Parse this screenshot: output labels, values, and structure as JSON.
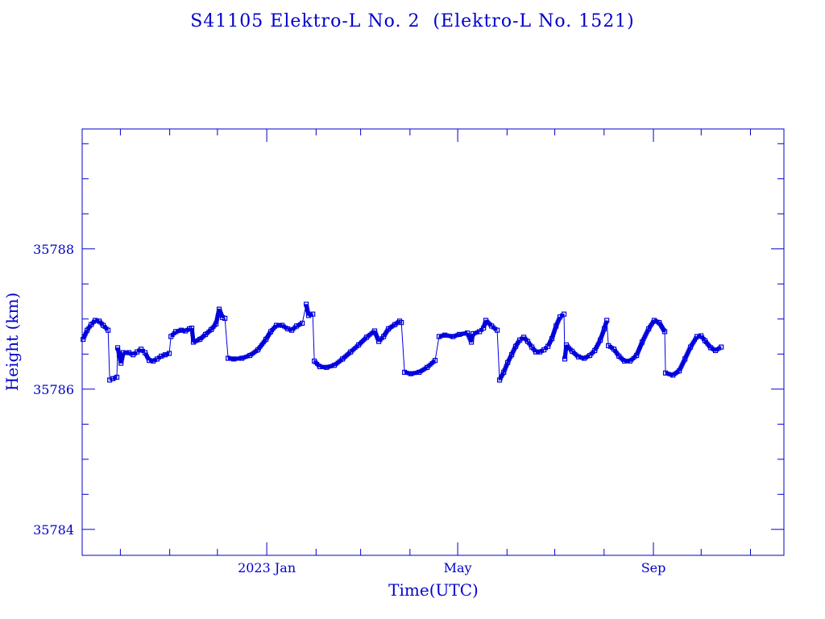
{
  "chart_data": {
    "type": "line",
    "title": "S41105 Elektro-L No. 2  (Elektro-L No. 1521)",
    "xlabel": "Time(UTC)",
    "ylabel": "Height (km)",
    "x_units": "days since 2023-01-01",
    "xlim": [
      -116,
      325
    ],
    "ylim": [
      35783.63,
      35789.71
    ],
    "x_major_ticks": [
      {
        "value": 0,
        "label": "2023 Jan"
      },
      {
        "value": 120,
        "label": "May"
      },
      {
        "value": 243,
        "label": "Sep"
      }
    ],
    "x_minor_ticks": [
      -92,
      -61,
      -31,
      31,
      59,
      90,
      151,
      181,
      212,
      273,
      304
    ],
    "y_major_ticks": [
      {
        "value": 35784,
        "label": "35784"
      },
      {
        "value": 35786,
        "label": "35786"
      },
      {
        "value": 35788,
        "label": "35788"
      }
    ],
    "y_minor_step": 0.5,
    "grid": false,
    "color": "#0000dd",
    "series": [
      {
        "name": "Height",
        "marker": "square",
        "points": [
          [
            -115.4,
            35786.71
          ],
          [
            -112.9,
            35786.84
          ],
          [
            -110.4,
            35786.92
          ],
          [
            -107.8,
            35786.98
          ],
          [
            -105.3,
            35786.97
          ],
          [
            -102.8,
            35786.91
          ],
          [
            -99.7,
            35786.84
          ],
          [
            -98.7,
            35786.13
          ],
          [
            -96.7,
            35786.15
          ],
          [
            -94.2,
            35786.17
          ],
          [
            -93.7,
            35786.59
          ],
          [
            -92.7,
            35786.49
          ],
          [
            -91.6,
            35786.37
          ],
          [
            -90.1,
            35786.52
          ],
          [
            -86.6,
            35786.52
          ],
          [
            -84.0,
            35786.49
          ],
          [
            -81.5,
            35786.53
          ],
          [
            -79.0,
            35786.57
          ],
          [
            -76.5,
            35786.52
          ],
          [
            -73.9,
            35786.41
          ],
          [
            -71.4,
            35786.4
          ],
          [
            -68.9,
            35786.43
          ],
          [
            -66.3,
            35786.47
          ],
          [
            -63.8,
            35786.49
          ],
          [
            -61.3,
            35786.51
          ],
          [
            -60.2,
            35786.75
          ],
          [
            -57.2,
            35786.82
          ],
          [
            -53.7,
            35786.84
          ],
          [
            -51.1,
            35786.83
          ],
          [
            -48.6,
            35786.86
          ],
          [
            -47.1,
            35786.87
          ],
          [
            -46.1,
            35786.67
          ],
          [
            -42.0,
            35786.71
          ],
          [
            -38.5,
            35786.78
          ],
          [
            -34.9,
            35786.85
          ],
          [
            -31.9,
            35786.93
          ],
          [
            -29.9,
            35787.14
          ],
          [
            -27.8,
            35787.02
          ],
          [
            -26.3,
            35787.01
          ],
          [
            -24.3,
            35786.44
          ],
          [
            -20.8,
            35786.43
          ],
          [
            -15.7,
            35786.44
          ],
          [
            -10.6,
            35786.48
          ],
          [
            -5.6,
            35786.56
          ],
          [
            -0.5,
            35786.71
          ],
          [
            2.5,
            35786.82
          ],
          [
            6.1,
            35786.91
          ],
          [
            9.6,
            35786.91
          ],
          [
            13.2,
            35786.86
          ],
          [
            15.7,
            35786.84
          ],
          [
            18.7,
            35786.9
          ],
          [
            22.3,
            35786.94
          ],
          [
            24.8,
            35787.21
          ],
          [
            26.3,
            35787.05
          ],
          [
            28.9,
            35787.07
          ],
          [
            29.9,
            35786.4
          ],
          [
            33.4,
            35786.32
          ],
          [
            37.5,
            35786.31
          ],
          [
            42.5,
            35786.34
          ],
          [
            47.6,
            35786.43
          ],
          [
            52.7,
            35786.53
          ],
          [
            57.7,
            35786.63
          ],
          [
            62.8,
            35786.74
          ],
          [
            67.8,
            35786.83
          ],
          [
            70.4,
            35786.68
          ],
          [
            73.4,
            35786.75
          ],
          [
            76.5,
            35786.86
          ],
          [
            80.5,
            35786.92
          ],
          [
            83.5,
            35786.97
          ],
          [
            84.6,
            35786.95
          ],
          [
            86.6,
            35786.24
          ],
          [
            90.6,
            35786.22
          ],
          [
            95.7,
            35786.24
          ],
          [
            100.8,
            35786.31
          ],
          [
            105.8,
            35786.41
          ],
          [
            108.3,
            35786.75
          ],
          [
            111.9,
            35786.77
          ],
          [
            117.0,
            35786.75
          ],
          [
            121.0,
            35786.78
          ],
          [
            126.1,
            35786.8
          ],
          [
            128.6,
            35786.67
          ],
          [
            129.6,
            35786.79
          ],
          [
            133.7,
            35786.82
          ],
          [
            136.2,
            35786.87
          ],
          [
            137.7,
            35786.98
          ],
          [
            141.3,
            35786.9
          ],
          [
            144.8,
            35786.84
          ],
          [
            146.3,
            35786.13
          ],
          [
            148.9,
            35786.24
          ],
          [
            151.4,
            35786.38
          ],
          [
            153.9,
            35786.49
          ],
          [
            156.4,
            35786.61
          ],
          [
            159.0,
            35786.7
          ],
          [
            161.5,
            35786.74
          ],
          [
            164.0,
            35786.68
          ],
          [
            166.6,
            35786.6
          ],
          [
            169.1,
            35786.53
          ],
          [
            171.6,
            35786.53
          ],
          [
            174.2,
            35786.56
          ],
          [
            176.7,
            35786.61
          ],
          [
            179.2,
            35786.72
          ],
          [
            181.8,
            35786.9
          ],
          [
            184.3,
            35787.03
          ],
          [
            186.8,
            35787.07
          ],
          [
            187.3,
            35786.43
          ],
          [
            188.3,
            35786.63
          ],
          [
            191.9,
            35786.54
          ],
          [
            195.9,
            35786.46
          ],
          [
            199.5,
            35786.44
          ],
          [
            203.0,
            35786.48
          ],
          [
            206.1,
            35786.55
          ],
          [
            209.6,
            35786.7
          ],
          [
            212.1,
            35786.86
          ],
          [
            213.7,
            35786.98
          ],
          [
            214.7,
            35786.62
          ],
          [
            218.2,
            35786.57
          ],
          [
            221.3,
            35786.47
          ],
          [
            224.8,
            35786.4
          ],
          [
            228.3,
            35786.4
          ],
          [
            232.4,
            35786.48
          ],
          [
            235.9,
            35786.67
          ],
          [
            240.0,
            35786.86
          ],
          [
            243.5,
            35786.98
          ],
          [
            246.6,
            35786.95
          ],
          [
            250.1,
            35786.82
          ],
          [
            250.6,
            35786.23
          ],
          [
            255.2,
            35786.2
          ],
          [
            259.2,
            35786.26
          ],
          [
            262.8,
            35786.43
          ],
          [
            266.3,
            35786.6
          ],
          [
            270.4,
            35786.75
          ],
          [
            272.9,
            35786.76
          ],
          [
            275.4,
            35786.69
          ],
          [
            279.0,
            35786.59
          ],
          [
            282.0,
            35786.55
          ],
          [
            285.6,
            35786.6
          ]
        ]
      }
    ]
  }
}
